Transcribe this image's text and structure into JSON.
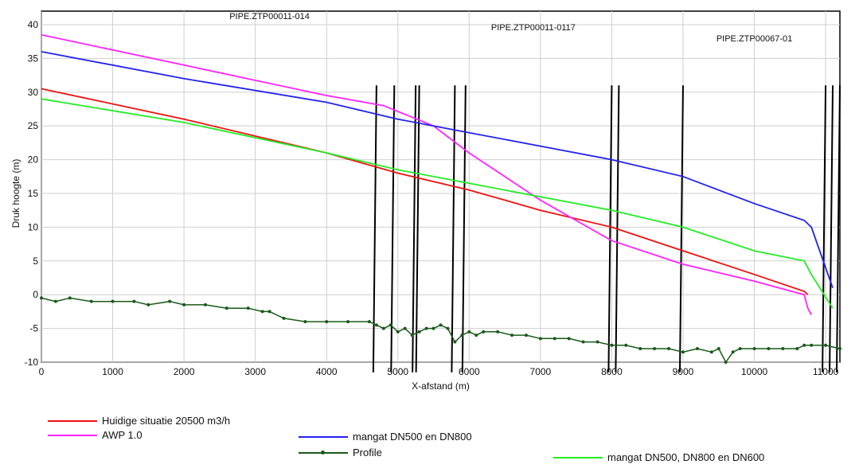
{
  "chart_data": {
    "type": "line",
    "title": "",
    "xlabel": "X-afstand (m)",
    "ylabel": "Druk hoogte (m)",
    "xlim": [
      0,
      11200
    ],
    "ylim": [
      -10,
      42
    ],
    "x_ticks": [
      0,
      1000,
      2000,
      3000,
      4000,
      5000,
      6000,
      7000,
      8000,
      9000,
      10000,
      11000
    ],
    "y_ticks": [
      -10,
      -5,
      0,
      5,
      10,
      15,
      20,
      25,
      30,
      35,
      40
    ],
    "grid": true,
    "pipe_labels": [
      {
        "text": "PIPE.ZTP00011-014",
        "x": 3200
      },
      {
        "text": "PIPE.ZTP00011-0117",
        "x": 6900
      },
      {
        "text": "PIPE.ZTP00067-01",
        "x": 10000
      }
    ],
    "vertical_markers": [
      4700,
      4950,
      5250,
      5300,
      5800,
      5950,
      8000,
      8100,
      9000,
      11000,
      11100,
      11200
    ],
    "series": [
      {
        "name": "Huidige situatie 20500 m3/h",
        "color": "#ee1111",
        "x": [
          0,
          2000,
          4000,
          5000,
          6000,
          7000,
          8000,
          9000,
          10000,
          10700,
          10750
        ],
        "y": [
          30.5,
          26,
          21,
          18,
          15.5,
          12.5,
          10,
          6.5,
          3,
          0.5,
          0
        ]
      },
      {
        "name": "AWP 1.0",
        "color": "#ff22ff",
        "x": [
          0,
          2000,
          4000,
          4800,
          5500,
          6000,
          7000,
          8000,
          9000,
          10000,
          10700,
          10750,
          10800
        ],
        "y": [
          38.5,
          34,
          29.5,
          28,
          25,
          21,
          14,
          8,
          4.5,
          2,
          0,
          -2,
          -3
        ]
      },
      {
        "name": "mangat DN500 en DN800",
        "color": "#2222ee",
        "x": [
          0,
          2000,
          4000,
          5000,
          6000,
          7000,
          8000,
          9000,
          10000,
          10700,
          10800,
          11100
        ],
        "y": [
          36,
          32,
          28.5,
          26,
          24,
          22,
          20,
          17.5,
          13.5,
          11,
          10,
          1
        ]
      },
      {
        "name": "mangat DN500, DN800 en DN600",
        "color": "#22ee22",
        "x": [
          0,
          2000,
          4000,
          5000,
          6000,
          7000,
          8000,
          9000,
          10000,
          10700,
          10800,
          11100
        ],
        "y": [
          29,
          25.5,
          21,
          18.5,
          16.5,
          14.5,
          12.5,
          10,
          6.5,
          5,
          3,
          -2
        ]
      },
      {
        "name": "Profile",
        "color": "#1a5a1a",
        "markers": true,
        "x": [
          0,
          200,
          400,
          700,
          1000,
          1300,
          1500,
          1800,
          2000,
          2300,
          2600,
          2900,
          3100,
          3200,
          3400,
          3700,
          4000,
          4300,
          4600,
          4700,
          4800,
          4900,
          5000,
          5100,
          5200,
          5300,
          5400,
          5500,
          5600,
          5700,
          5800,
          5900,
          6000,
          6100,
          6200,
          6400,
          6600,
          6800,
          7000,
          7200,
          7400,
          7600,
          7800,
          8000,
          8200,
          8400,
          8600,
          8800,
          9000,
          9200,
          9400,
          9500,
          9600,
          9700,
          9800,
          10000,
          10200,
          10400,
          10600,
          10700,
          10800,
          11000,
          11200
        ],
        "y": [
          -0.5,
          -1,
          -0.5,
          -1,
          -1,
          -1,
          -1.5,
          -1,
          -1.5,
          -1.5,
          -2,
          -2,
          -2.5,
          -2.5,
          -3.5,
          -4,
          -4,
          -4,
          -4,
          -4.5,
          -5,
          -4.5,
          -5.5,
          -5,
          -6,
          -5.5,
          -5,
          -5,
          -4.5,
          -5,
          -7,
          -6,
          -5.5,
          -6,
          -5.5,
          -5.5,
          -6,
          -6,
          -6.5,
          -6.5,
          -6.5,
          -7,
          -7,
          -7.5,
          -7.5,
          -8,
          -8,
          -8,
          -8.5,
          -8,
          -8.5,
          -8,
          -10,
          -8.5,
          -8,
          -8,
          -8,
          -8,
          -8,
          -7.5,
          -7.5,
          -7.5,
          -8
        ]
      }
    ]
  },
  "legend": {
    "huidige": "Huidige situatie 20500 m3/h",
    "awp": "AWP 1.0",
    "mangat1": "mangat DN500 en DN800",
    "profile": "Profile",
    "mangat2": "mangat DN500, DN800 en DN600"
  }
}
